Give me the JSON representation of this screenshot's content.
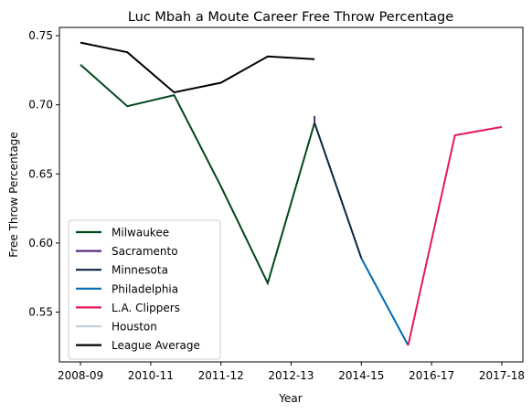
{
  "chart_data": {
    "type": "line",
    "title": "Luc Mbah a Moute Career Free Throw Percentage",
    "xlabel": "Year",
    "ylabel": "Free Throw Percentage",
    "x_ticks": [
      "2008-09",
      "2010-11",
      "2011-12",
      "2012-13",
      "2014-15",
      "2016-17",
      "2017-18"
    ],
    "x_tick_positions": [
      0,
      1.5,
      3,
      4.5,
      6,
      7.5,
      9
    ],
    "xlim": [
      -0.45,
      9.45
    ],
    "ylim": [
      0.514,
      0.756
    ],
    "y_ticks": [
      0.55,
      0.6,
      0.65,
      0.7,
      0.75
    ],
    "y_tick_labels": [
      "0.55",
      "0.60",
      "0.65",
      "0.70",
      "0.75"
    ],
    "grid": false,
    "legend_position": "lower-left",
    "series": [
      {
        "name": "Milwaukee",
        "color": "#00471b",
        "x": [
          0,
          1,
          2,
          3,
          4,
          5
        ],
        "y": [
          0.729,
          0.699,
          0.707,
          0.641,
          0.571,
          0.687
        ]
      },
      {
        "name": "Sacramento",
        "color": "#5a2d81",
        "x": [
          5
        ],
        "y": [
          0.692
        ]
      },
      {
        "name": "Minnesota",
        "color": "#0c2340",
        "x": [
          5,
          6
        ],
        "y": [
          0.687,
          0.589
        ]
      },
      {
        "name": "Philadelphia",
        "color": "#006bb6",
        "x": [
          6,
          7
        ],
        "y": [
          0.589,
          0.526
        ]
      },
      {
        "name": "L.A. Clippers",
        "color": "#e31a55",
        "x": [
          7,
          8,
          9
        ],
        "y": [
          0.526,
          0.678,
          0.684
        ]
      },
      {
        "name": "Houston",
        "color": "#c4ced4",
        "x": [],
        "y": []
      },
      {
        "name": "League Average",
        "color": "#000000",
        "x": [
          0,
          1,
          2,
          3,
          4,
          5
        ],
        "y": [
          0.745,
          0.738,
          0.709,
          0.716,
          0.735,
          0.733
        ]
      }
    ]
  }
}
